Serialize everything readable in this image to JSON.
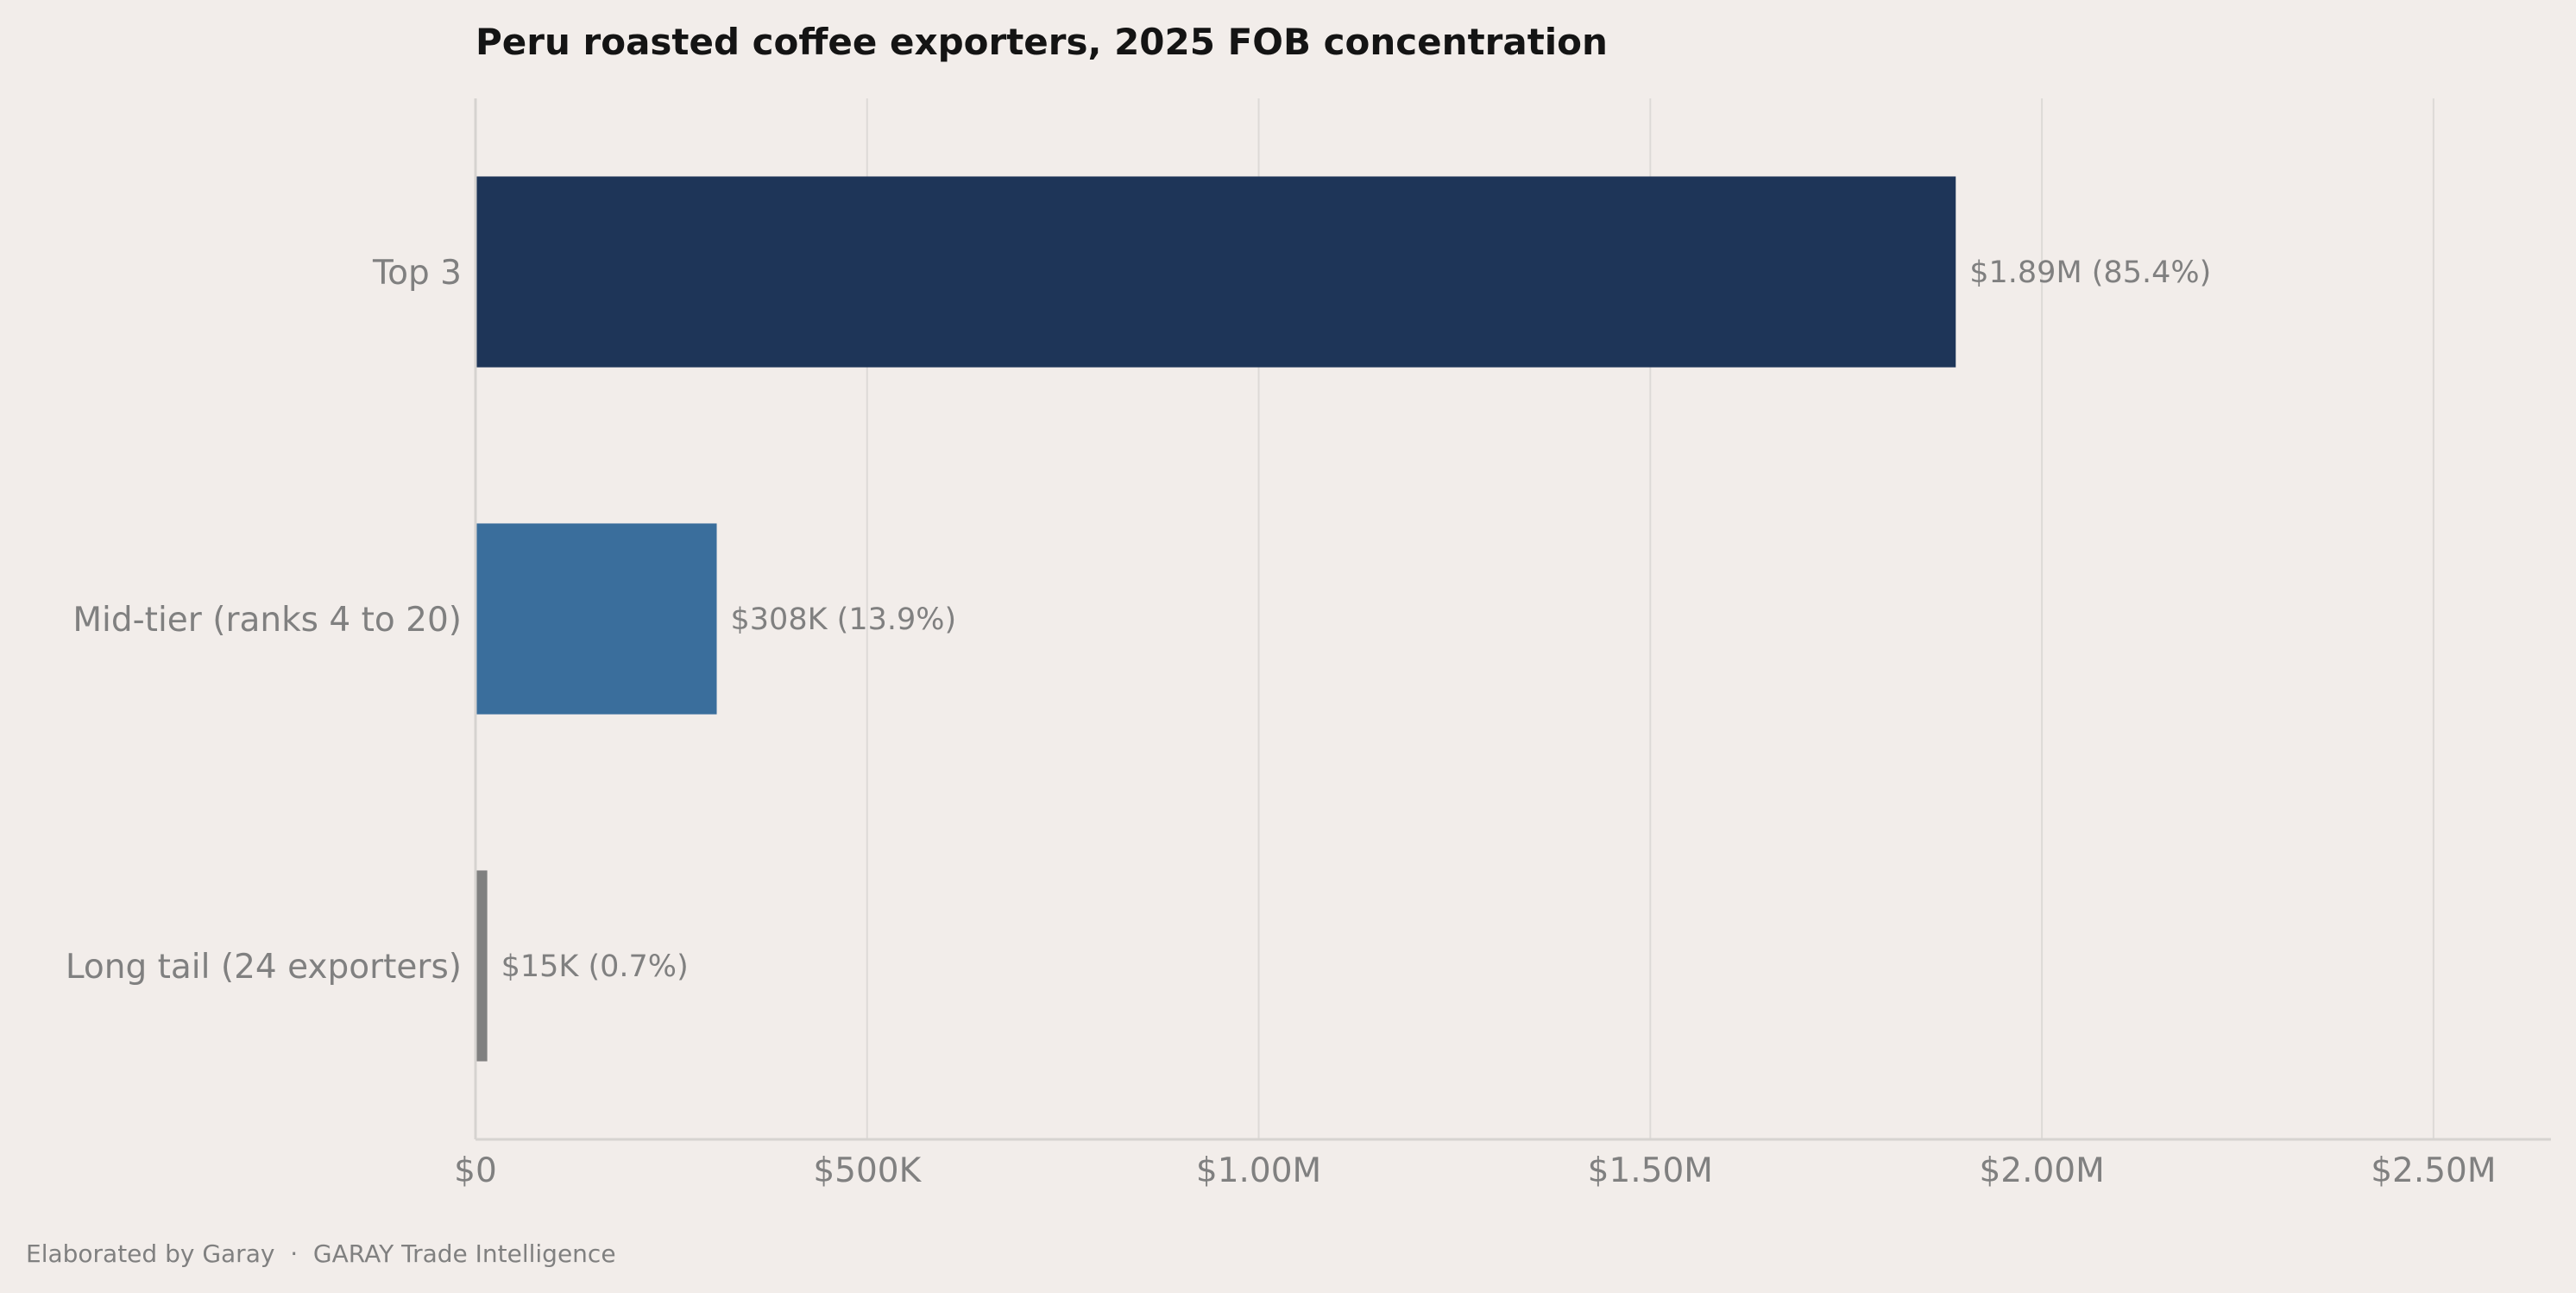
{
  "chart_data": {
    "type": "bar",
    "orientation": "horizontal",
    "title": "Peru roasted coffee exporters, 2025 FOB concentration",
    "xlabel": "",
    "ylabel": "",
    "categories": [
      "Top 3",
      "Mid-tier (ranks 4 to 20)",
      "Long tail (24 exporters)"
    ],
    "values": [
      1890000,
      308000,
      15000
    ],
    "shares_percent": [
      85.4,
      13.9,
      0.7
    ],
    "data_labels": [
      "$1.89M  (85.4%)",
      "$308K  (13.9%)",
      "$15K  (0.7%)"
    ],
    "colors": [
      "#1e3558",
      "#3a6e9c",
      "#808080"
    ],
    "xlim": [
      0,
      2650000
    ],
    "x_ticks": [
      0,
      500000,
      1000000,
      1500000,
      2000000,
      2500000
    ],
    "x_tick_labels": [
      "$0",
      "$500K",
      "$1.00M",
      "$1.50M",
      "$2.00M",
      "$2.50M"
    ],
    "grid": "vertical",
    "legend": "none"
  },
  "footer": "Elaborated by Garay  ·  GARAY Trade Intelligence"
}
